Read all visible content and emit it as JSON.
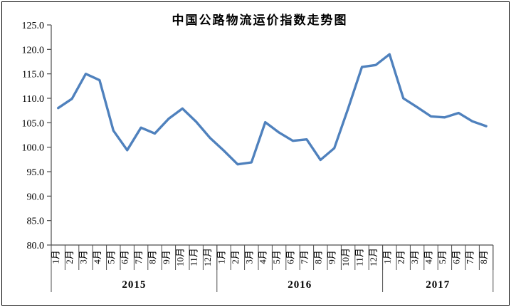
{
  "chart_data": {
    "type": "line",
    "title": "中国公路物流运价指数走势图",
    "xlabel": "",
    "ylabel": "",
    "ylim": [
      80.0,
      125.0
    ],
    "ytick_step": 5.0,
    "ytick_labels": [
      "125.0",
      "120.0",
      "115.0",
      "110.0",
      "105.0",
      "100.0",
      "95.0",
      "90.0",
      "85.0",
      "80.0"
    ],
    "grid": false,
    "legend": "none",
    "line_color": "#4f81bd",
    "axis_color": "#4d4d4d",
    "border_color": "#000000",
    "years": [
      {
        "label": "2015",
        "months": [
          "1月",
          "2月",
          "3月",
          "4月",
          "5月",
          "6月",
          "7月",
          "8月",
          "9月",
          "10月",
          "11月",
          "12月"
        ]
      },
      {
        "label": "2016",
        "months": [
          "1月",
          "2月",
          "3月",
          "4月",
          "5月",
          "6月",
          "7月",
          "8月",
          "9月",
          "10月",
          "11月",
          "12月"
        ]
      },
      {
        "label": "2017",
        "months": [
          "1月",
          "2月",
          "3月",
          "4月",
          "5月",
          "6月",
          "7月",
          "8月"
        ]
      }
    ],
    "values": [
      108.0,
      109.9,
      115.0,
      113.7,
      103.4,
      99.4,
      104.0,
      102.8,
      105.8,
      107.9,
      105.2,
      101.9,
      99.3,
      96.5,
      96.9,
      105.1,
      103.0,
      101.3,
      101.6,
      97.4,
      99.8,
      107.9,
      116.4,
      116.8,
      119.0,
      110.0,
      108.2,
      106.3,
      106.1,
      107.0,
      105.3,
      104.3
    ]
  }
}
